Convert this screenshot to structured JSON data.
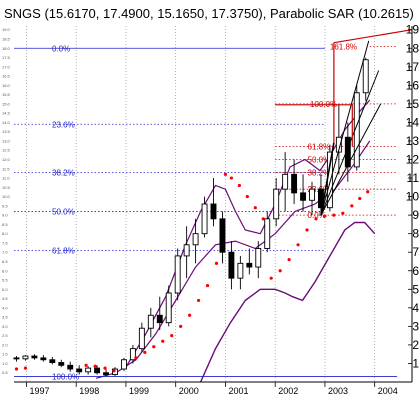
{
  "header": {
    "title": "SNGS (15.6170, 17.4900, 15.1650, 17.3750), Parabolic SAR (10.2615)"
  },
  "colors": {
    "price": "#000000",
    "sar": "#ff0000",
    "bands": "#6b0b7a",
    "fib_left": "#2222cc",
    "fib_right": "#cc0000",
    "grid": "#888888"
  },
  "chart_data": {
    "type": "candlestick",
    "title": "SNGS (15.6170, 17.4900, 15.1650, 17.3750), Parabolic SAR (10.2615)",
    "x_range": [
      1996.75,
      2004.75
    ],
    "ylim": [
      0,
      19.2
    ],
    "x_ticks": [
      {
        "label": "1997",
        "x": 1997.0
      },
      {
        "label": "1998",
        "x": 1998.0
      },
      {
        "label": "1999",
        "x": 1999.0
      },
      {
        "label": "2000",
        "x": 2000.0
      },
      {
        "label": "2001",
        "x": 2001.0
      },
      {
        "label": "2002",
        "x": 2002.0
      },
      {
        "label": "2003",
        "x": 2003.0
      },
      {
        "label": "2004",
        "x": 2004.0
      }
    ],
    "y_ticks": [
      1,
      2,
      3,
      4,
      5,
      6,
      7,
      8,
      9,
      10,
      11,
      12,
      13,
      14,
      15,
      16,
      17,
      18,
      19
    ],
    "y_ticks_small": [
      "0.5",
      "1.0",
      "1.5",
      "2.0",
      "2.5",
      "3.0",
      "3.5",
      "4.0",
      "4.5",
      "5.0",
      "5.5",
      "6.0",
      "6.5",
      "7.0",
      "7.5",
      "8.0",
      "8.5",
      "9.0",
      "9.5",
      "10.0",
      "10.5",
      "11.0",
      "11.5",
      "12.0",
      "12.5",
      "13.0",
      "13.5",
      "14.0",
      "14.5",
      "15.0",
      "15.5",
      "16.0",
      "16.5",
      "17.0",
      "17.5",
      "18.0",
      "18.5",
      "19.0"
    ],
    "candles": [
      {
        "t": 1996.8,
        "o": 1.3,
        "h": 1.4,
        "l": 1.1,
        "c": 1.25
      },
      {
        "t": 1996.98,
        "o": 1.25,
        "h": 1.45,
        "l": 1.15,
        "c": 1.4
      },
      {
        "t": 1997.16,
        "o": 1.4,
        "h": 1.5,
        "l": 1.2,
        "c": 1.3
      },
      {
        "t": 1997.34,
        "o": 1.3,
        "h": 1.45,
        "l": 1.1,
        "c": 1.2
      },
      {
        "t": 1997.52,
        "o": 1.2,
        "h": 1.35,
        "l": 0.95,
        "c": 1.05
      },
      {
        "t": 1997.7,
        "o": 1.05,
        "h": 1.2,
        "l": 0.8,
        "c": 0.9
      },
      {
        "t": 1997.88,
        "o": 0.9,
        "h": 1.1,
        "l": 0.55,
        "c": 0.7
      },
      {
        "t": 1998.06,
        "o": 0.7,
        "h": 0.9,
        "l": 0.4,
        "c": 0.55
      },
      {
        "t": 1998.24,
        "o": 0.55,
        "h": 0.85,
        "l": 0.4,
        "c": 0.75
      },
      {
        "t": 1998.42,
        "o": 0.75,
        "h": 0.9,
        "l": 0.4,
        "c": 0.5
      },
      {
        "t": 1998.6,
        "o": 0.5,
        "h": 0.7,
        "l": 0.3,
        "c": 0.4
      },
      {
        "t": 1998.78,
        "o": 0.4,
        "h": 0.8,
        "l": 0.3,
        "c": 0.7
      },
      {
        "t": 1998.96,
        "o": 0.7,
        "h": 1.3,
        "l": 0.6,
        "c": 1.2
      },
      {
        "t": 1999.14,
        "o": 1.2,
        "h": 2.0,
        "l": 1.0,
        "c": 1.8
      },
      {
        "t": 1999.32,
        "o": 1.8,
        "h": 3.2,
        "l": 1.6,
        "c": 2.9
      },
      {
        "t": 1999.5,
        "o": 2.9,
        "h": 4.0,
        "l": 2.4,
        "c": 3.6
      },
      {
        "t": 1999.68,
        "o": 3.6,
        "h": 4.6,
        "l": 2.8,
        "c": 3.2
      },
      {
        "t": 1999.86,
        "o": 3.2,
        "h": 5.2,
        "l": 3.0,
        "c": 4.8
      },
      {
        "t": 2000.04,
        "o": 4.8,
        "h": 7.2,
        "l": 4.4,
        "c": 6.8
      },
      {
        "t": 2000.22,
        "o": 6.8,
        "h": 8.4,
        "l": 5.6,
        "c": 7.4
      },
      {
        "t": 2000.4,
        "o": 7.4,
        "h": 8.8,
        "l": 6.4,
        "c": 8.0
      },
      {
        "t": 2000.58,
        "o": 8.0,
        "h": 10.0,
        "l": 7.8,
        "c": 9.6
      },
      {
        "t": 2000.76,
        "o": 9.6,
        "h": 11.0,
        "l": 8.4,
        "c": 8.8
      },
      {
        "t": 2000.94,
        "o": 8.8,
        "h": 9.2,
        "l": 6.4,
        "c": 7.0
      },
      {
        "t": 2001.12,
        "o": 7.0,
        "h": 7.6,
        "l": 5.0,
        "c": 5.6
      },
      {
        "t": 2001.3,
        "o": 5.6,
        "h": 6.8,
        "l": 5.0,
        "c": 6.4
      },
      {
        "t": 2001.48,
        "o": 6.4,
        "h": 7.2,
        "l": 5.8,
        "c": 6.2
      },
      {
        "t": 2001.66,
        "o": 6.2,
        "h": 7.6,
        "l": 5.6,
        "c": 7.2
      },
      {
        "t": 2001.84,
        "o": 7.2,
        "h": 9.2,
        "l": 7.0,
        "c": 8.8
      },
      {
        "t": 2002.02,
        "o": 8.8,
        "h": 11.0,
        "l": 8.4,
        "c": 10.4
      },
      {
        "t": 2002.2,
        "o": 10.4,
        "h": 12.4,
        "l": 9.2,
        "c": 11.2
      },
      {
        "t": 2002.38,
        "o": 11.2,
        "h": 12.0,
        "l": 9.6,
        "c": 10.2
      },
      {
        "t": 2002.56,
        "o": 10.2,
        "h": 11.2,
        "l": 9.2,
        "c": 9.8
      },
      {
        "t": 2002.74,
        "o": 9.8,
        "h": 10.8,
        "l": 9.0,
        "c": 10.4
      },
      {
        "t": 2002.92,
        "o": 10.4,
        "h": 11.2,
        "l": 9.0,
        "c": 9.4
      },
      {
        "t": 2003.1,
        "o": 9.4,
        "h": 12.8,
        "l": 9.2,
        "c": 12.4
      },
      {
        "t": 2003.28,
        "o": 12.4,
        "h": 15.0,
        "l": 11.2,
        "c": 13.2
      },
      {
        "t": 2003.46,
        "o": 13.2,
        "h": 14.0,
        "l": 10.8,
        "c": 11.6
      },
      {
        "t": 2003.64,
        "o": 11.6,
        "h": 16.0,
        "l": 11.4,
        "c": 15.6
      },
      {
        "t": 2003.82,
        "o": 15.6,
        "h": 17.49,
        "l": 15.17,
        "c": 17.38
      }
    ],
    "sar": [
      {
        "t": 1996.8,
        "v": 0.7
      },
      {
        "t": 1996.98,
        "v": 0.75
      },
      {
        "t": 1998.2,
        "v": 0.9
      },
      {
        "t": 1998.38,
        "v": 0.85
      },
      {
        "t": 1998.58,
        "v": 0.75
      },
      {
        "t": 1998.76,
        "v": 0.6
      },
      {
        "t": 1999.2,
        "v": 1.3
      },
      {
        "t": 1999.38,
        "v": 1.6
      },
      {
        "t": 1999.56,
        "v": 1.9
      },
      {
        "t": 1999.74,
        "v": 2.2
      },
      {
        "t": 1999.92,
        "v": 2.5
      },
      {
        "t": 2000.1,
        "v": 3.0
      },
      {
        "t": 2000.28,
        "v": 3.6
      },
      {
        "t": 2000.46,
        "v": 4.4
      },
      {
        "t": 2000.64,
        "v": 5.2
      },
      {
        "t": 2000.82,
        "v": 6.4
      },
      {
        "t": 2001.0,
        "v": 11.2
      },
      {
        "t": 2001.12,
        "v": 11.0
      },
      {
        "t": 2001.28,
        "v": 10.6
      },
      {
        "t": 2001.44,
        "v": 10.0
      },
      {
        "t": 2001.6,
        "v": 9.4
      },
      {
        "t": 2001.76,
        "v": 8.8
      },
      {
        "t": 2001.92,
        "v": 5.6
      },
      {
        "t": 2002.1,
        "v": 6.0
      },
      {
        "t": 2002.28,
        "v": 6.6
      },
      {
        "t": 2002.46,
        "v": 7.4
      },
      {
        "t": 2002.64,
        "v": 8.2
      },
      {
        "t": 2002.82,
        "v": 8.8
      },
      {
        "t": 2003.0,
        "v": 8.95
      },
      {
        "t": 2003.18,
        "v": 9.0
      },
      {
        "t": 2003.36,
        "v": 9.1
      },
      {
        "t": 2003.54,
        "v": 9.5
      },
      {
        "t": 2003.7,
        "v": 9.9
      },
      {
        "t": 2003.86,
        "v": 10.26
      }
    ],
    "upper_band": [
      [
        1999.0,
        0.8
      ],
      [
        1999.4,
        2.6
      ],
      [
        1999.8,
        4.6
      ],
      [
        2000.2,
        7.4
      ],
      [
        2000.5,
        9.2
      ],
      [
        2000.8,
        10.6
      ],
      [
        2001.0,
        10.4
      ],
      [
        2001.2,
        9.2
      ],
      [
        2001.4,
        8.2
      ],
      [
        2001.7,
        8.0
      ],
      [
        2002.0,
        9.6
      ],
      [
        2002.3,
        11.6
      ],
      [
        2002.6,
        12.0
      ],
      [
        2002.9,
        11.4
      ],
      [
        2003.1,
        12.2
      ],
      [
        2003.4,
        13.6
      ],
      [
        2003.7,
        14.6
      ],
      [
        2003.9,
        15.2
      ]
    ],
    "middle_band": [
      [
        1998.4,
        0.2
      ],
      [
        1998.8,
        0.5
      ],
      [
        1999.2,
        1.2
      ],
      [
        1999.6,
        2.6
      ],
      [
        2000.0,
        4.4
      ],
      [
        2000.4,
        6.2
      ],
      [
        2000.8,
        7.4
      ],
      [
        2001.2,
        7.6
      ],
      [
        2001.6,
        7.2
      ],
      [
        2002.0,
        8.0
      ],
      [
        2002.4,
        9.2
      ],
      [
        2002.8,
        9.6
      ],
      [
        2003.2,
        10.4
      ],
      [
        2003.6,
        11.8
      ],
      [
        2003.9,
        13.0
      ]
    ],
    "lower_band": [
      [
        2000.5,
        0.0
      ],
      [
        2000.8,
        1.8
      ],
      [
        2001.1,
        3.2
      ],
      [
        2001.4,
        4.4
      ],
      [
        2001.7,
        5.0
      ],
      [
        2002.0,
        5.0
      ],
      [
        2002.2,
        4.8
      ],
      [
        2002.35,
        4.6
      ],
      [
        2002.55,
        4.4
      ],
      [
        2002.8,
        5.4
      ],
      [
        2003.1,
        6.8
      ],
      [
        2003.4,
        8.2
      ],
      [
        2003.6,
        8.6
      ],
      [
        2003.8,
        8.6
      ],
      [
        2004.0,
        8.0
      ]
    ],
    "fib_left": [
      {
        "label": "0.0%",
        "value": 18.0,
        "x_end": 2003.0
      },
      {
        "label": "23.6%",
        "value": 13.9,
        "x_end": 2003.0
      },
      {
        "label": "38.2%",
        "value": 11.3,
        "x_end": 2003.0
      },
      {
        "label": "50.0%",
        "value": 9.2,
        "x_end": 2003.0
      },
      {
        "label": "61.8%",
        "value": 7.1,
        "x_end": 2003.0
      },
      {
        "label": "100.0%",
        "value": 0.3,
        "x_end": 2004.45
      }
    ],
    "fib_right": [
      {
        "label": "161.8%",
        "value": 18.1
      },
      {
        "label": "100.0%",
        "value": 15.0
      },
      {
        "label": "61.8%",
        "value": 12.7
      },
      {
        "label": "50.0%",
        "value": 12.0
      },
      {
        "label": "38.2%",
        "value": 11.3
      },
      {
        "label": "23.6%",
        "value": 10.4
      },
      {
        "label": "0.0%",
        "value": 9.0
      }
    ],
    "fib_right_x": [
      2002.0,
      2004.45
    ],
    "fan_lines": [
      {
        "from": [
          2002.92,
          9.0
        ],
        "to": [
          2003.88,
          18.4
        ]
      },
      {
        "from": [
          2002.92,
          9.0
        ],
        "to": [
          2004.08,
          16.8
        ]
      },
      {
        "from": [
          2002.92,
          9.0
        ],
        "to": [
          2004.12,
          15.0
        ]
      }
    ],
    "red_lines": [
      {
        "from": [
          2002.0,
          14.95
        ],
        "to": [
          2003.55,
          14.95
        ]
      },
      {
        "from": [
          2003.18,
          12.9
        ],
        "to": [
          2003.18,
          18.3
        ]
      },
      {
        "from": [
          2003.18,
          18.3
        ],
        "to": [
          2004.75,
          19.0
        ]
      },
      {
        "from": [
          2003.55,
          12.7
        ],
        "to": [
          2003.55,
          15.0
        ]
      }
    ],
    "black_lines": [
      {
        "from": [
          2002.92,
          9.0
        ],
        "to": [
          2003.18,
          12.9
        ]
      }
    ]
  }
}
